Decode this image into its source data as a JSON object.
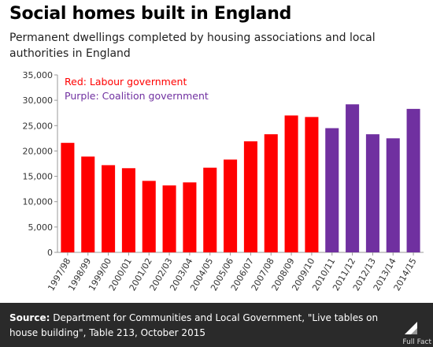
{
  "header": {
    "title": "Social homes built in England",
    "subtitle": "Permanent dwellings completed by housing associations and local authorities in England"
  },
  "chart_data": {
    "type": "bar",
    "categories": [
      "1997/98",
      "1998/99",
      "1999/00",
      "2000/01",
      "2001/02",
      "2002/03",
      "2003/04",
      "2004/05",
      "2005/06",
      "2006/07",
      "2007/08",
      "2008/09",
      "2009/10",
      "2010/11",
      "2011/12",
      "2012/13",
      "2013/14",
      "2014/15"
    ],
    "values": [
      21600,
      18900,
      17200,
      16600,
      14100,
      13200,
      13800,
      16700,
      18300,
      21900,
      23300,
      27000,
      26700,
      24500,
      29200,
      23300,
      22500,
      28300
    ],
    "government": [
      "Labour",
      "Labour",
      "Labour",
      "Labour",
      "Labour",
      "Labour",
      "Labour",
      "Labour",
      "Labour",
      "Labour",
      "Labour",
      "Labour",
      "Labour",
      "Coalition",
      "Coalition",
      "Coalition",
      "Coalition",
      "Coalition"
    ],
    "colors": {
      "Labour": "#ff0000",
      "Coalition": "#7030a0"
    },
    "ylim": [
      0,
      35000
    ],
    "yticks": [
      0,
      5000,
      10000,
      15000,
      20000,
      25000,
      30000,
      35000
    ],
    "ytick_labels": [
      "0",
      "5,000",
      "10,000",
      "15,000",
      "20,000",
      "25,000",
      "30,000",
      "35,000"
    ],
    "annotations": [
      {
        "text": "Red: Labour government",
        "color": "#ff0000"
      },
      {
        "text": "Purple: Coalition government",
        "color": "#7030a0"
      }
    ],
    "grid": false
  },
  "footer": {
    "source_label": "Source:",
    "source_text": "Department for Communities and Local Government, \"Live tables on house building\", Table 213, October 2015",
    "logo_text": "Full Fact"
  }
}
